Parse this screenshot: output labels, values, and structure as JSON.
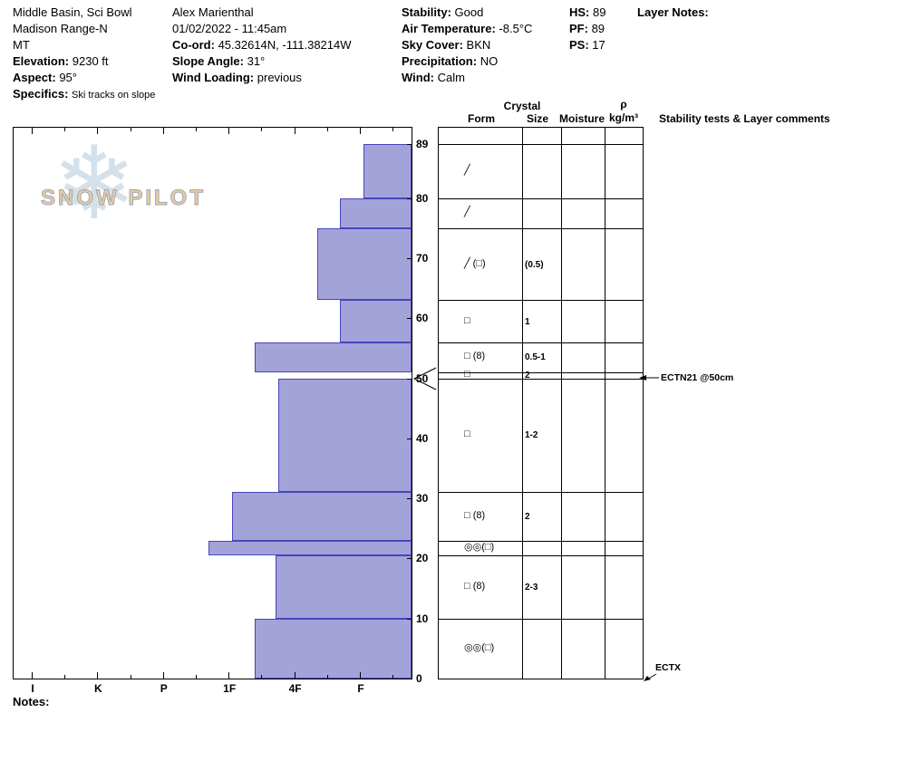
{
  "header": {
    "location": {
      "line1": "Middle Basin, Sci Bowl",
      "line2": "Madison Range-N",
      "line3": "MT",
      "elevation_label": "Elevation:",
      "elevation_value": "9230 ft",
      "aspect_label": "Aspect:",
      "aspect_value": "95°",
      "specifics_label": "Specifics:",
      "specifics_value": "Ski tracks on slope"
    },
    "observer": {
      "name": "Alex Marienthal",
      "datetime": "01/02/2022 - 11:45am",
      "coord_label": "Co-ord:",
      "coord_value": "45.32614N, -111.38214W",
      "slope_angle_label": "Slope Angle:",
      "slope_angle_value": "31°",
      "wind_loading_label": "Wind Loading:",
      "wind_loading_value": "previous"
    },
    "conditions": {
      "stability_label": "Stability:",
      "stability_value": "Good",
      "air_temp_label": "Air Temperature:",
      "air_temp_value": "-8.5°C",
      "sky_label": "Sky Cover:",
      "sky_value": "BKN",
      "precip_label": "Precipitation:",
      "precip_value": "NO",
      "wind_label": "Wind:",
      "wind_value": "Calm"
    },
    "measures": {
      "hs_label": "HS:",
      "hs_value": "89",
      "pf_label": "PF:",
      "pf_value": "89",
      "ps_label": "PS:",
      "ps_value": "17"
    },
    "layer_notes_label": "Layer Notes:"
  },
  "watermark": {
    "text": "SNOW PILOT",
    "snowflake_icon": "❄"
  },
  "chart_data": {
    "type": "bar",
    "title": "Snow pit hardness profile (hardness vs depth)",
    "depth_unit": "cm",
    "depth_max": 89,
    "depth_ticks": [
      89,
      80,
      70,
      60,
      50,
      40,
      30,
      20,
      10,
      0
    ],
    "hardness_ticks": [
      "I",
      "K",
      "P",
      "1F",
      "4F",
      "F"
    ],
    "bar_color": "#a3a3da",
    "bar_border_color": "#4646bb",
    "layers": [
      {
        "top_cm": 89,
        "bottom_cm": 80,
        "hardness": "F",
        "h": 6.05,
        "form": "╱",
        "size": "",
        "moisture": "",
        "density": ""
      },
      {
        "top_cm": 80,
        "bottom_cm": 75,
        "hardness": "F+",
        "h": 5.7,
        "form": "╱",
        "size": "",
        "moisture": "",
        "density": ""
      },
      {
        "top_cm": 75,
        "bottom_cm": 63,
        "hardness": "4F-",
        "h": 5.35,
        "form": "╱ (□)",
        "size": "(0.5)",
        "moisture": "",
        "density": ""
      },
      {
        "top_cm": 63,
        "bottom_cm": 56,
        "hardness": "F+",
        "h": 5.7,
        "form": "□",
        "size": "1",
        "moisture": "",
        "density": ""
      },
      {
        "top_cm": 56,
        "bottom_cm": 51,
        "hardness": "1F-",
        "h": 4.4,
        "form": "□ (8)",
        "size": "0.5-1",
        "moisture": "",
        "density": ""
      },
      {
        "top_cm": 51,
        "bottom_cm": 50,
        "hardness": "F-",
        "h": null,
        "gap": true,
        "form": "□",
        "size": "2",
        "moisture": "",
        "density": ""
      },
      {
        "top_cm": 50,
        "bottom_cm": 31,
        "hardness": "4F+",
        "h": 4.75,
        "form": "□",
        "size": "1-2",
        "moisture": "",
        "density": ""
      },
      {
        "top_cm": 31,
        "bottom_cm": 23,
        "hardness": "1F",
        "h": 4.05,
        "form": "□ (8)",
        "size": "2",
        "moisture": "",
        "density": ""
      },
      {
        "top_cm": 23,
        "bottom_cm": 20.5,
        "hardness": "1F+",
        "h": 3.7,
        "form": "◎◎(□)",
        "size": "",
        "moisture": "",
        "density": ""
      },
      {
        "top_cm": 20.5,
        "bottom_cm": 10,
        "hardness": "4F+",
        "h": 4.72,
        "form": "□ (8)",
        "size": "2-3",
        "moisture": "",
        "density": ""
      },
      {
        "top_cm": 10,
        "bottom_cm": 0,
        "hardness": "1F-",
        "h": 4.4,
        "form": "◎◎(□)",
        "size": "",
        "moisture": "",
        "density": ""
      }
    ],
    "tests": [
      {
        "label": "ECTN21 @50cm",
        "depth_cm": 50,
        "marker": "wedge-and-left-arrow"
      },
      {
        "label": "ECTX",
        "depth_cm": 0,
        "marker": "arrow-down-left"
      }
    ]
  },
  "grain_table": {
    "header": {
      "crystal": "Crystal",
      "form": "Form",
      "size": "Size",
      "moisture": "Moisture",
      "rho": "ρ",
      "rho_unit": "kg/m³",
      "comments": "Stability tests & Layer comments"
    }
  },
  "footer": {
    "notes_label": "Notes:"
  }
}
